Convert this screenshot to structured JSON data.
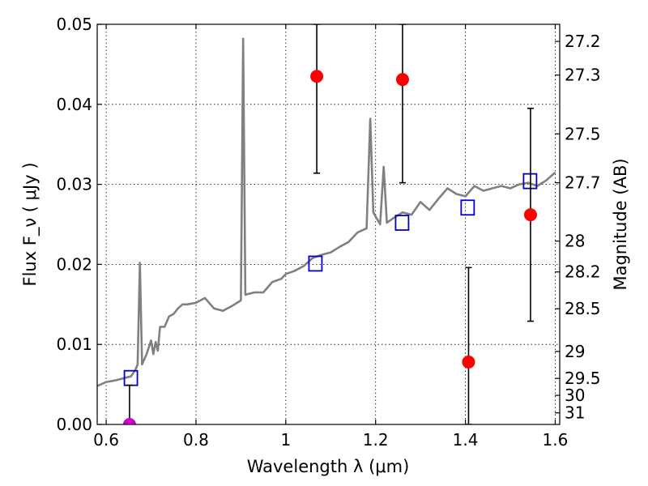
{
  "chart_data": {
    "type": "scatter",
    "xlabel": "Wavelength  λ (μm)",
    "ylabel": "Flux  F_ν  ( μJy )",
    "y2label": "Magnitude (AB)",
    "xlim": [
      0.58,
      1.61
    ],
    "ylim": [
      0.0,
      0.05
    ],
    "grid": true,
    "x_ticks": [
      0.6,
      0.8,
      1.0,
      1.2,
      1.4,
      1.6
    ],
    "x_tick_labels": [
      "0.6",
      "0.8",
      "1",
      "1.2",
      "1.4",
      "1.6"
    ],
    "y_ticks": [
      0.0,
      0.01,
      0.02,
      0.03,
      0.04,
      0.05
    ],
    "y_tick_labels": [
      "0.00",
      "0.01",
      "0.02",
      "0.03",
      "0.04",
      "0.05"
    ],
    "y2_ticks": [
      27.2,
      27.3,
      27.5,
      27.7,
      28,
      28.2,
      28.5,
      29,
      29.5,
      30,
      31
    ],
    "y2_tick_labels": [
      "27.2",
      "27.3",
      "27.5",
      "27.7",
      "28",
      "28.2",
      "28.5",
      "29",
      "29.5",
      "30",
      "31"
    ],
    "series": [
      {
        "kind": "line",
        "color": "#808080",
        "x": [
          0.58,
          0.6,
          0.62,
          0.64,
          0.655,
          0.665,
          0.67,
          0.675,
          0.68,
          0.69,
          0.7,
          0.705,
          0.71,
          0.715,
          0.72,
          0.73,
          0.74,
          0.75,
          0.76,
          0.77,
          0.78,
          0.8,
          0.82,
          0.84,
          0.86,
          0.88,
          0.9,
          0.905,
          0.91,
          0.93,
          0.95,
          0.97,
          0.99,
          1.0,
          1.02,
          1.04,
          1.06,
          1.08,
          1.1,
          1.12,
          1.14,
          1.16,
          1.18,
          1.188,
          1.195,
          1.2,
          1.21,
          1.218,
          1.225,
          1.24,
          1.26,
          1.28,
          1.3,
          1.32,
          1.34,
          1.36,
          1.38,
          1.4,
          1.42,
          1.44,
          1.46,
          1.48,
          1.5,
          1.52,
          1.54,
          1.56,
          1.58,
          1.6
        ],
        "y": [
          0.0048,
          0.0053,
          0.0055,
          0.0058,
          0.006,
          0.0068,
          0.0075,
          0.0202,
          0.0075,
          0.0088,
          0.0105,
          0.0088,
          0.0103,
          0.0092,
          0.0122,
          0.0122,
          0.0135,
          0.0138,
          0.0145,
          0.015,
          0.015,
          0.0152,
          0.0158,
          0.0145,
          0.0142,
          0.0148,
          0.0155,
          0.0482,
          0.0162,
          0.0165,
          0.0165,
          0.0178,
          0.0182,
          0.0188,
          0.0192,
          0.0198,
          0.0208,
          0.0212,
          0.0215,
          0.0222,
          0.0228,
          0.024,
          0.0245,
          0.0382,
          0.0265,
          0.026,
          0.025,
          0.0322,
          0.0252,
          0.0258,
          0.0265,
          0.0262,
          0.0278,
          0.0268,
          0.0282,
          0.0295,
          0.0288,
          0.0285,
          0.0298,
          0.0292,
          0.0295,
          0.0298,
          0.0295,
          0.03,
          0.0302,
          0.0298,
          0.0305,
          0.0315
        ]
      },
      {
        "kind": "points",
        "marker": "square",
        "color": "#0000cc",
        "x": [
          0.655,
          1.066,
          1.259,
          1.405,
          1.544
        ],
        "y": [
          0.0058,
          0.0201,
          0.0252,
          0.0271,
          0.0304
        ]
      },
      {
        "kind": "points",
        "marker": "circle",
        "color": "#ff0000",
        "x": [
          1.069,
          1.26,
          1.407,
          1.545
        ],
        "y": [
          0.0435,
          0.0431,
          0.0078,
          0.0262
        ],
        "y_err_low": [
          0.0314,
          0.0302,
          0.0,
          0.0129
        ],
        "y_err_high": [
          0.05,
          0.05,
          0.0196,
          0.0395
        ]
      },
      {
        "kind": "points",
        "marker": "circle",
        "color": "#cc00cc",
        "x": [
          0.652
        ],
        "y": [
          0.0
        ],
        "y_err_low": [
          0.0
        ],
        "y_err_high": [
          0.0049
        ]
      }
    ]
  }
}
